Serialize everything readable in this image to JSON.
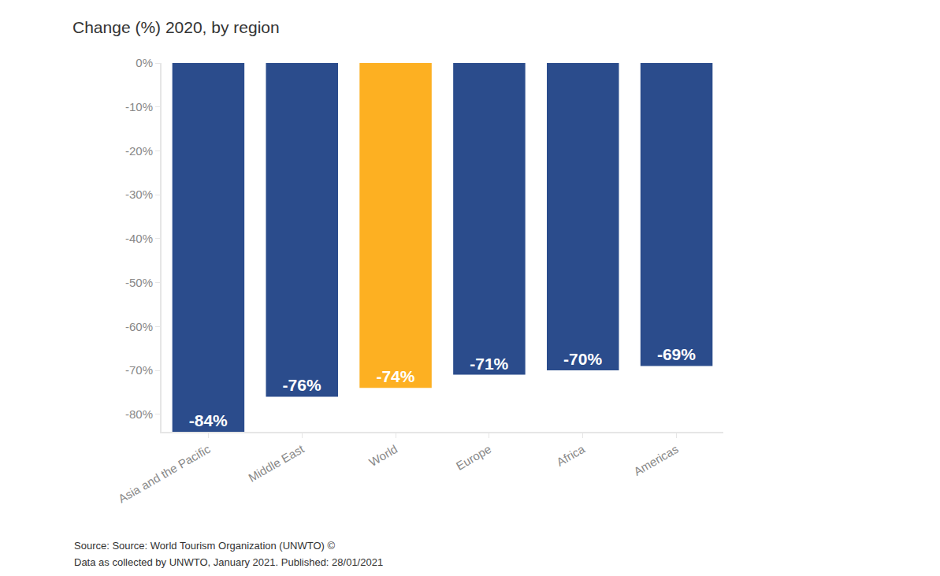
{
  "chart_data": {
    "type": "bar",
    "title": "Change (%) 2020, by region",
    "categories": [
      "Asia and the Pacific",
      "Middle East",
      "World",
      "Europe",
      "Africa",
      "Americas"
    ],
    "values": [
      -84,
      -76,
      -74,
      -71,
      -70,
      -69
    ],
    "value_labels": [
      "-84%",
      "-76%",
      "-74%",
      "-71%",
      "-70%",
      "-69%"
    ],
    "colors": [
      "#2b4c8c",
      "#2b4c8c",
      "#fdb022",
      "#2b4c8c",
      "#2b4c8c",
      "#2b4c8c"
    ],
    "data_labels": true,
    "ylim": [
      -84,
      0
    ],
    "yticks": [
      {
        "value": 0,
        "label": "0%"
      },
      {
        "value": -10,
        "label": "-10%"
      },
      {
        "value": -20,
        "label": "-20%"
      },
      {
        "value": -30,
        "label": "-30%"
      },
      {
        "value": -40,
        "label": "-40%"
      },
      {
        "value": -50,
        "label": "-50%"
      },
      {
        "value": -60,
        "label": "-60%"
      },
      {
        "value": -70,
        "label": "-70%"
      },
      {
        "value": -80,
        "label": "-80%"
      }
    ],
    "grid": false,
    "annotations": [
      "Source: Source: World Tourism Organization (UNWTO) ©",
      "Data as collected by UNWTO, January 2021. Published: 28/01/2021"
    ]
  }
}
